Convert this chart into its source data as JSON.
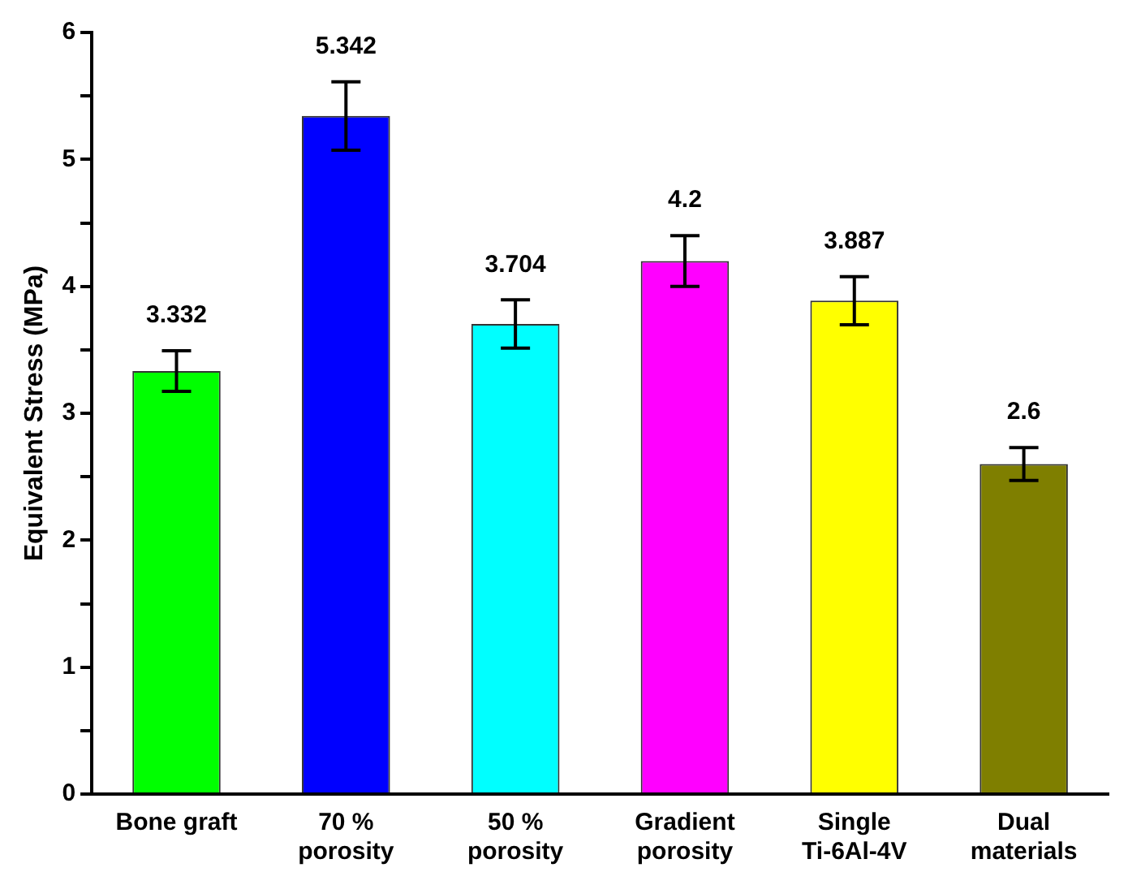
{
  "chart_data": {
    "type": "bar",
    "ylabel": "Equivalent Stress (MPa)",
    "categories": [
      "Bone graft",
      "70 % porosity",
      "50 % porosity",
      "Gradient porosity",
      "Single Ti-6Al-4V",
      "Dual materials"
    ],
    "values": [
      3.332,
      5.342,
      3.704,
      4.2,
      3.887,
      2.6
    ],
    "colors": [
      "#00ff00",
      "#0000ff",
      "#00ffff",
      "#ff00ff",
      "#ffff00",
      "#7f7f00"
    ],
    "errors": [
      0.16,
      0.27,
      0.19,
      0.2,
      0.19,
      0.13
    ],
    "data_labels": true,
    "ylim": [
      0,
      6
    ],
    "yticks": [
      0,
      {
        "value": 0.5,
        "label": null
      },
      1,
      {
        "value": 1.5,
        "label": null
      },
      2,
      {
        "value": 2.5,
        "label": null
      },
      3,
      {
        "value": 3.5,
        "label": null
      },
      4,
      {
        "value": 4.5,
        "label": null
      },
      5,
      {
        "value": 5.5,
        "label": null
      },
      6
    ],
    "grid": false,
    "legend": false
  }
}
